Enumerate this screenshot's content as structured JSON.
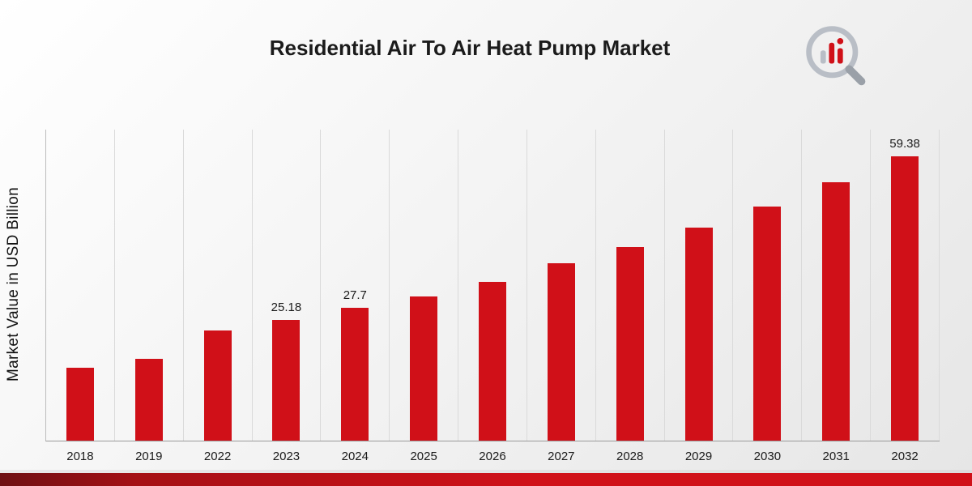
{
  "page": {
    "title": "Residential Air To Air Heat Pump Market"
  },
  "colors": {
    "bar": "#d01018",
    "band_dark": "#6e1013",
    "band_bright": "#d01018",
    "gridline": "#dadada"
  },
  "chart_data": {
    "type": "bar",
    "title": "Residential Air To Air Heat Pump Market",
    "xlabel": "",
    "ylabel": "Market Value in USD Billion",
    "ylim": [
      0,
      65
    ],
    "grid": "vertical",
    "legend": "none",
    "bar_color": "#d01018",
    "categories": [
      "2018",
      "2019",
      "2022",
      "2023",
      "2024",
      "2025",
      "2026",
      "2027",
      "2028",
      "2029",
      "2030",
      "2031",
      "2032"
    ],
    "points": [
      {
        "category": "2018",
        "value": 15.3,
        "label": ""
      },
      {
        "category": "2019",
        "value": 17.1,
        "label": ""
      },
      {
        "category": "2022",
        "value": 23.1,
        "label": ""
      },
      {
        "category": "2023",
        "value": 25.18,
        "label": "25.18"
      },
      {
        "category": "2024",
        "value": 27.7,
        "label": "27.7"
      },
      {
        "category": "2025",
        "value": 30.2,
        "label": ""
      },
      {
        "category": "2026",
        "value": 33.2,
        "label": ""
      },
      {
        "category": "2027",
        "value": 37.0,
        "label": ""
      },
      {
        "category": "2028",
        "value": 40.4,
        "label": ""
      },
      {
        "category": "2029",
        "value": 44.5,
        "label": ""
      },
      {
        "category": "2030",
        "value": 48.9,
        "label": ""
      },
      {
        "category": "2031",
        "value": 54.0,
        "label": ""
      },
      {
        "category": "2032",
        "value": 59.38,
        "label": "59.38"
      }
    ]
  }
}
